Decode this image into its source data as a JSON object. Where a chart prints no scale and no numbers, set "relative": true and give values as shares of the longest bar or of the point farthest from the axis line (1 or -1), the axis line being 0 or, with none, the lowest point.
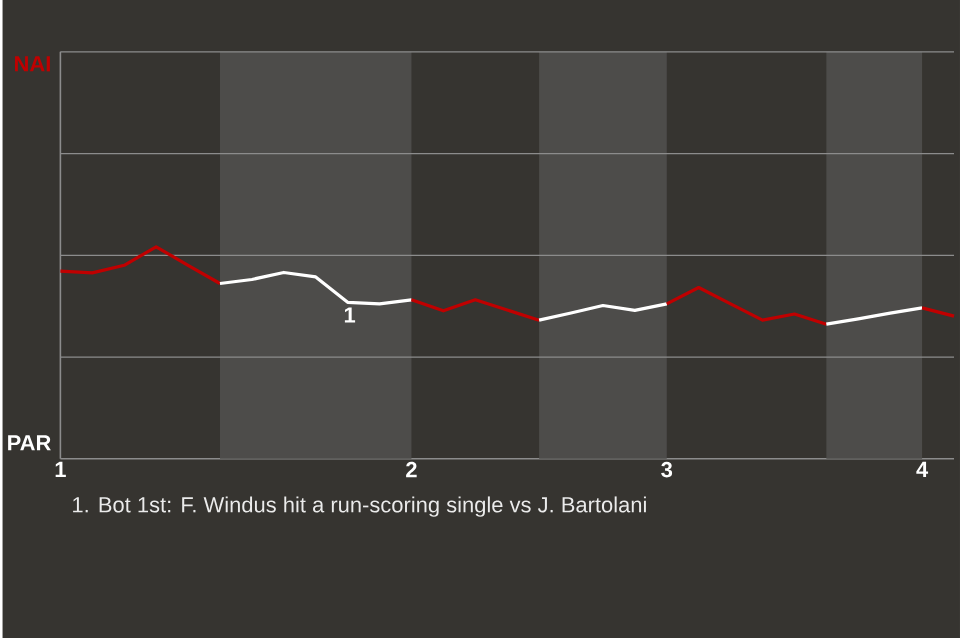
{
  "chart_data": {
    "type": "line",
    "relative": true,
    "annotations": [
      {
        "text": "1",
        "y": 0.738
      },
      "1. Bot 1st: F. Windus hit a run-scoring single vs J. Bartolani",
      "NAI",
      "PAR"
    ],
    "categories": [
      "1",
      null,
      null,
      null,
      null,
      null,
      null,
      null,
      null,
      null,
      null,
      "2",
      null,
      null,
      null,
      null,
      null,
      null,
      null,
      "3",
      null,
      null,
      null,
      null,
      null,
      null,
      null,
      "4",
      null
    ],
    "ref_lines": [
      {
        "axis": "y",
        "value": 0.48,
        "color": "#8c8c8c"
      },
      {
        "axis": "y",
        "value": 0.96,
        "color": "#8c8c8c"
      },
      {
        "axis": "y",
        "value": 1.44,
        "color": "#8c8c8c"
      },
      {
        "axis": "y",
        "value": 1.92,
        "color": "#8c8c8c"
      }
    ],
    "series": [
      {
        "color": "#c00000",
        "values": [
          0.885,
          0.877,
          0.913,
          1,
          0.913,
          0.827,
          null,
          null,
          null,
          null,
          null,
          null,
          null,
          null,
          null,
          null,
          null,
          null,
          null,
          null,
          null,
          null,
          null,
          null,
          null,
          null,
          null,
          null,
          null
        ]
      },
      {
        "color": "#ffffff",
        "values": [
          null,
          null,
          null,
          null,
          null,
          0.827,
          0.846,
          0.879,
          0.858,
          0.738,
          0.731,
          0.75,
          null,
          null,
          null,
          null,
          null,
          null,
          null,
          null,
          null,
          null,
          null,
          null,
          null,
          null,
          null,
          null,
          null
        ]
      },
      {
        "color": "#c00000",
        "values": [
          null,
          null,
          null,
          null,
          null,
          null,
          null,
          null,
          null,
          null,
          null,
          0.75,
          0.698,
          0.75,
          0.702,
          0.654,
          null,
          null,
          null,
          null,
          null,
          null,
          null,
          null,
          null,
          null,
          null,
          null,
          null
        ]
      },
      {
        "color": "#ffffff",
        "values": [
          null,
          null,
          null,
          null,
          null,
          null,
          null,
          null,
          null,
          null,
          null,
          null,
          null,
          null,
          null,
          0.654,
          0.688,
          0.723,
          0.7,
          0.731,
          null,
          null,
          null,
          null,
          null,
          null,
          null,
          null,
          null
        ]
      },
      {
        "color": "#c00000",
        "values": [
          null,
          null,
          null,
          null,
          null,
          null,
          null,
          null,
          null,
          null,
          null,
          null,
          null,
          null,
          null,
          null,
          null,
          null,
          null,
          0.731,
          0.808,
          0.731,
          0.654,
          0.683,
          0.635,
          null,
          null,
          null,
          null
        ]
      },
      {
        "color": "#ffffff",
        "values": [
          null,
          null,
          null,
          null,
          null,
          null,
          null,
          null,
          null,
          null,
          null,
          null,
          null,
          null,
          null,
          null,
          null,
          null,
          null,
          null,
          null,
          null,
          null,
          null,
          0.635,
          0.66,
          0.687,
          0.712,
          null
        ]
      },
      {
        "color": "#c00000",
        "values": [
          null,
          null,
          null,
          null,
          null,
          null,
          null,
          null,
          null,
          null,
          null,
          null,
          null,
          null,
          null,
          null,
          null,
          null,
          null,
          null,
          null,
          null,
          null,
          null,
          null,
          null,
          null,
          0.712,
          0.673
        ]
      }
    ]
  }
}
